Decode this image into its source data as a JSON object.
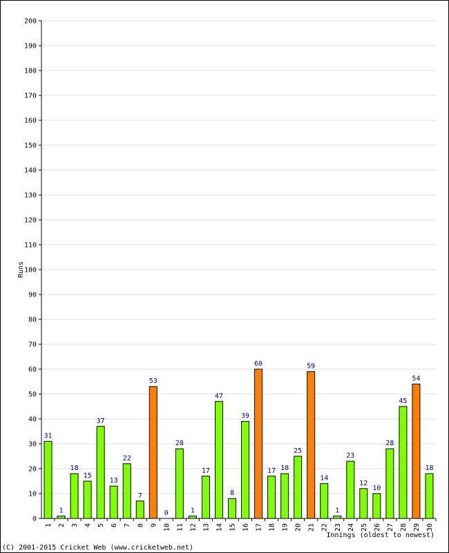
{
  "chart_data": {
    "type": "bar",
    "ylabel": "Runs",
    "xlabel": "Innings (oldest to newest)",
    "ylim": [
      0,
      200
    ],
    "y_ticks": [
      0,
      10,
      20,
      30,
      40,
      50,
      60,
      70,
      80,
      90,
      100,
      110,
      120,
      130,
      140,
      150,
      160,
      170,
      180,
      190,
      200
    ],
    "grid": true,
    "categories": [
      "1",
      "2",
      "3",
      "4",
      "5",
      "6",
      "7",
      "8",
      "9",
      "10",
      "11",
      "12",
      "13",
      "14",
      "15",
      "16",
      "17",
      "18",
      "19",
      "20",
      "21",
      "22",
      "23",
      "24",
      "25",
      "26",
      "27",
      "28",
      "29",
      "30"
    ],
    "values": [
      31,
      1,
      18,
      15,
      37,
      13,
      22,
      7,
      53,
      0,
      28,
      1,
      17,
      47,
      8,
      39,
      60,
      17,
      18,
      25,
      59,
      14,
      1,
      23,
      12,
      10,
      28,
      45,
      54,
      18
    ],
    "highlight_threshold": 50,
    "colors": {
      "normal": "#80ff00",
      "highlight": "#ff8000",
      "bar_outline": "#000000",
      "label": "#000080",
      "grid": "#d8d8d8"
    }
  },
  "footer": {
    "copyright": "(C) 2001-2015 Cricket Web (www.cricketweb.net)"
  }
}
